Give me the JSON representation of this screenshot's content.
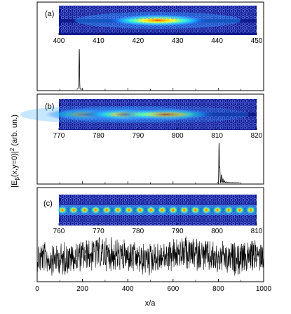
{
  "chart_data": {
    "type": "line",
    "ylabel": "|E_β(x,y=0)|² (arb. un.)",
    "ylabel_parts": {
      "pre": "|E",
      "sub": "β",
      "mid": "(x,y=0)|",
      "sup": "2",
      "post": " (arb. un.)"
    },
    "xlabel": "x/a",
    "grid": false,
    "xlim": [
      0,
      1000
    ],
    "xticks": [
      "0",
      "200",
      "400",
      "600",
      "800",
      "1000"
    ],
    "panels": [
      {
        "label": "(a)",
        "signal": "single-peak",
        "peak_x": 186,
        "inset": {
          "xlim": [
            400,
            450
          ],
          "ticks": [
            "400",
            "410",
            "420",
            "430",
            "440",
            "450"
          ],
          "hotspots": [
            {
              "x": 425,
              "width": 5,
              "intensity": 1.0
            }
          ]
        }
      },
      {
        "label": "(b)",
        "signal": "peak-with-tail",
        "peak_x": 803,
        "inset": {
          "xlim": [
            770,
            820
          ],
          "ticks": [
            "770",
            "780",
            "790",
            "800",
            "810",
            "820"
          ],
          "hotspots": [
            {
              "x": 777,
              "width": 4,
              "intensity": 0.55
            },
            {
              "x": 787,
              "width": 4,
              "intensity": 0.85
            },
            {
              "x": 797,
              "width": 5,
              "intensity": 0.6
            }
          ]
        }
      },
      {
        "label": "(c)",
        "signal": "extended-noise",
        "inset": {
          "xlim": [
            760,
            810
          ],
          "ticks": [
            "760",
            "770",
            "780",
            "790",
            "800",
            "810"
          ],
          "hotspots": "periodic-all"
        }
      }
    ],
    "colors": {
      "lattice_background": "#111a8c",
      "hole_ring": "#6f88ff",
      "field_high": "#ff2a00",
      "trace": "#000000"
    }
  }
}
